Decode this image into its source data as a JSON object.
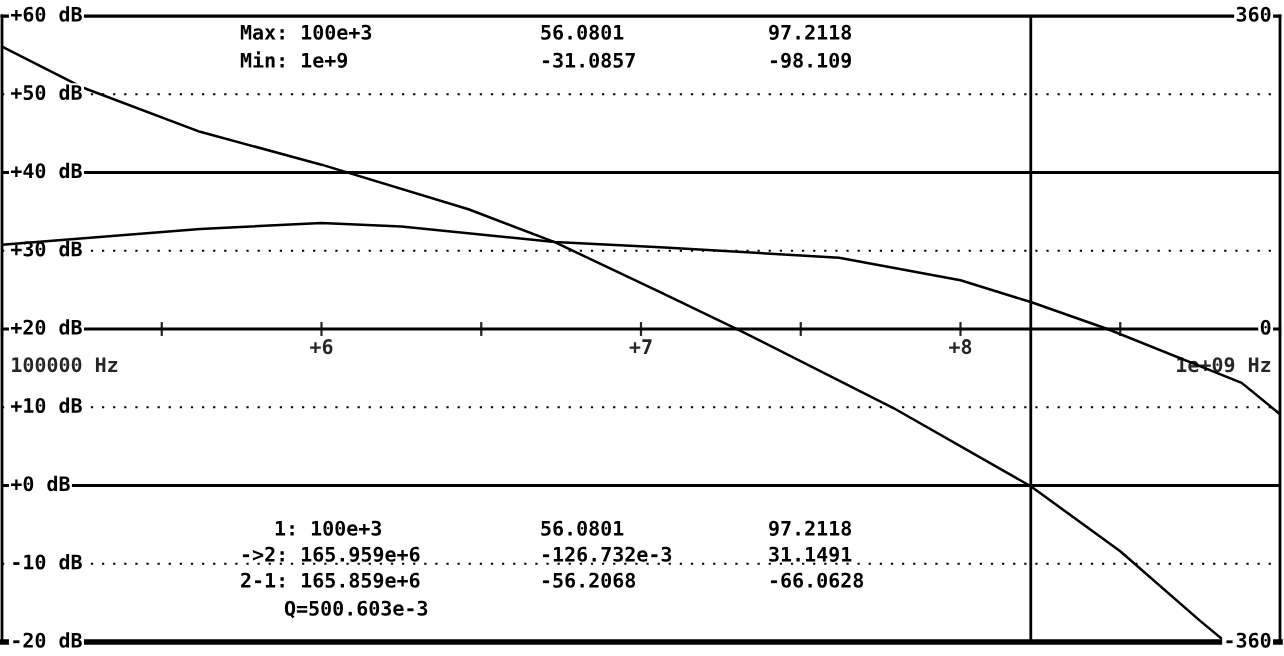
{
  "chart_data": {
    "type": "line",
    "grid": "y",
    "line_style": "solid",
    "marker": "none",
    "xlim": [
      5,
      9
    ],
    "xticks": [
      {
        "value": 5,
        "label": null
      },
      {
        "value": 5.5,
        "label": null
      },
      {
        "value": 6,
        "label": "+6"
      },
      {
        "value": 6.5,
        "label": null
      },
      {
        "value": 7,
        "label": "+7"
      },
      {
        "value": 7.5,
        "label": null
      },
      {
        "value": 8,
        "label": "+8"
      },
      {
        "value": 8.5,
        "label": null
      },
      {
        "value": 9,
        "label": null
      }
    ],
    "ylim": [
      -20,
      60
    ],
    "yticks": [
      {
        "value": 60,
        "label": "+60 dB"
      },
      {
        "value": 50,
        "label": "+50 dB"
      },
      {
        "value": 40,
        "label": "+40 dB"
      },
      {
        "value": 30,
        "label": "+30 dB"
      },
      {
        "value": 20,
        "label": "+20 dB"
      },
      {
        "value": 10,
        "label": "+10 dB"
      },
      {
        "value": 0,
        "label": "+0 dB"
      },
      {
        "value": -10,
        "label": "-10 dB"
      },
      {
        "value": -20,
        "label": "-20 dB"
      }
    ],
    "y2lim": [
      -360,
      360
    ],
    "y2ticks": [
      360,
      0,
      -360
    ],
    "series": [
      {
        "color": "#000000",
        "x": [
          5,
          5.25,
          5.62,
          6,
          6.46,
          6.73,
          7.06,
          7.31,
          7.79,
          8.22,
          8.5,
          8.75,
          8.83
        ],
        "values": [
          56.1,
          50.9,
          45.2,
          41.0,
          35.3,
          31.1,
          24.7,
          19.8,
          9.9,
          -0.1,
          -8.4,
          -17.3,
          -20
        ]
      },
      {
        "color": "#000000",
        "axis": "y2",
        "x": [
          5,
          5.62,
          6,
          6.25,
          6.73,
          7.06,
          7.62,
          8,
          8.22,
          8.46,
          8.88,
          9
        ],
        "values": [
          97,
          115,
          122,
          118,
          100,
          94,
          82,
          56,
          31,
          0,
          -62,
          -98
        ]
      }
    ],
    "ref_lines": [
      {
        "axis": "x",
        "value": 8.22,
        "color": "#000000",
        "line_style": "solid"
      }
    ],
    "annotations": [
      "Max: 100e+3",
      "56.0801",
      "97.2118",
      "Min: 1e+9",
      "-31.0857",
      "-98.109",
      "1: 100e+3",
      "56.0801",
      "97.2118",
      "->2: 165.959e+6",
      "-126.732e-3",
      "31.1491",
      "2-1: 165.859e+6",
      "-56.2068",
      "-66.0628",
      "Q=500.603e-3",
      "100000 Hz",
      "1e+09 Hz"
    ]
  }
}
